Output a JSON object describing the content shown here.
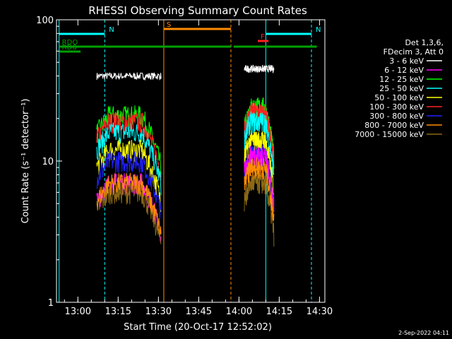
{
  "chart_data": {
    "type": "line",
    "title": "RHESSI Observing Summary Count Rates",
    "xlabel": "Start Time (20-Oct-17 12:52:02)",
    "ylabel": "Count Rate (s⁻¹ detector⁻¹)",
    "y_scale": "log",
    "ylim": [
      1,
      100
    ],
    "xlim": [
      "12:52:02",
      "14:32:00"
    ],
    "x_ticks": [
      "13:00",
      "13:15",
      "13:30",
      "13:45",
      "14:00",
      "14:15",
      "14:30"
    ],
    "y_ticks": [
      "1",
      "10",
      "100"
    ],
    "legend": {
      "position": "right",
      "header": [
        "Det 1,3,6,",
        "FDecim 3, Att 0"
      ],
      "entries": [
        {
          "name": "3 - 6 keV",
          "color": "#ffffff"
        },
        {
          "name": "6 - 12 keV",
          "color": "#ff00ff"
        },
        {
          "name": "12 - 25 keV",
          "color": "#00ff00"
        },
        {
          "name": "25 - 50 keV",
          "color": "#00ffff"
        },
        {
          "name": "50 - 100 keV",
          "color": "#ffff00"
        },
        {
          "name": "100 - 300 keV",
          "color": "#ff2020"
        },
        {
          "name": "300 - 800 keV",
          "color": "#2020ff"
        },
        {
          "name": "800 - 7000 keV",
          "color": "#ff8c00"
        },
        {
          "name": "7000 - 15000 keV",
          "color": "#8b6914"
        }
      ]
    },
    "series_segments": [
      {
        "start": "13:07",
        "end": "13:31",
        "levels": [
          40,
          7,
          21,
          16,
          12,
          19,
          10,
          7,
          6
        ]
      },
      {
        "start": "14:02",
        "end": "14:13",
        "levels": [
          45,
          11,
          24,
          19,
          14,
          22,
          11,
          9,
          7
        ]
      }
    ],
    "flags": [
      {
        "label": "N",
        "color": "#00ffff",
        "start": "12:53",
        "end": "13:10"
      },
      {
        "label": "N",
        "color": "#00ffff",
        "start": "14:10",
        "end": "14:27"
      },
      {
        "label": "S",
        "color": "#ff8c00",
        "start": "13:32",
        "end": "13:57"
      },
      {
        "label": "F",
        "color": "#ff2020",
        "start": "14:07",
        "end": "14:11"
      },
      {
        "label": "RDO",
        "color": "#00a000",
        "start": "12:53",
        "end": "13:24"
      },
      {
        "label": "",
        "color": "#00a000",
        "start": "13:24",
        "end": "13:57"
      },
      {
        "label": "",
        "color": "#00a000",
        "start": "13:58",
        "end": "14:09"
      },
      {
        "label": "",
        "color": "#00a000",
        "start": "14:09",
        "end": "14:29"
      },
      {
        "label": "RD6",
        "color": "#00a000",
        "start": "12:53",
        "end": "13:01"
      }
    ],
    "vertical_markers": [
      {
        "time": "12:53",
        "color": "#00ffff",
        "style": "solid"
      },
      {
        "time": "13:10",
        "color": "#00ffff",
        "style": "dashed"
      },
      {
        "time": "13:32",
        "color": "#ff8c00",
        "style": "solid"
      },
      {
        "time": "13:57",
        "color": "#ff8c00",
        "style": "dashed"
      },
      {
        "time": "14:10",
        "color": "#00ffff",
        "style": "solid"
      },
      {
        "time": "14:27",
        "color": "#00ffff",
        "style": "dashed"
      }
    ],
    "grid": false
  },
  "footer": {
    "timestamp": "2-Sep-2022 04:11"
  }
}
